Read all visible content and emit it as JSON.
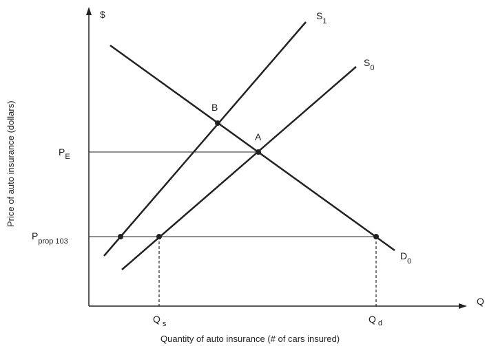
{
  "axes": {
    "y_symbol": "$",
    "x_symbol": "Q",
    "y_title": "Price of auto insurance (dollars)",
    "x_title": "Quantity of auto insurance (#  of cars insured)"
  },
  "curves": {
    "s1": {
      "base": "S",
      "sub": "1"
    },
    "s0": {
      "base": "S",
      "sub": "0"
    },
    "d0": {
      "base": "D",
      "sub": "0"
    }
  },
  "points": {
    "a": "A",
    "b": "B"
  },
  "price_labels": {
    "pe": {
      "base": "P",
      "sub": "E"
    },
    "pprop": {
      "base": "P",
      "sub": "prop 103"
    }
  },
  "quantity_labels": {
    "qs": {
      "base": "Q",
      "sub": "s"
    },
    "qd": {
      "base": "Q",
      "sub": "d"
    }
  },
  "colors": {
    "line": "#222222",
    "background": "#ffffff"
  }
}
